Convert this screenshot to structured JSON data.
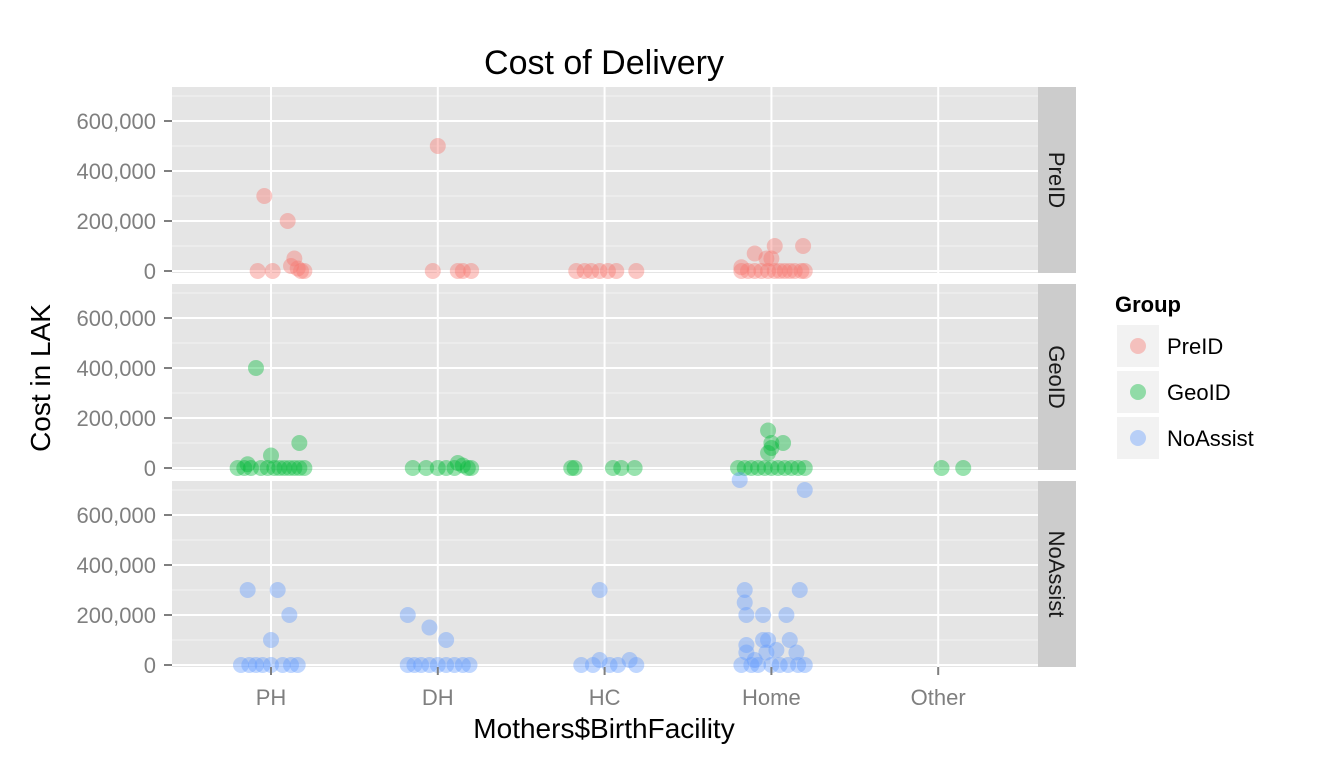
{
  "chart_data": {
    "type": "scatter",
    "title": "Cost of Delivery",
    "xlabel": "Mothers$BirthFacility",
    "ylabel": "Cost in LAK",
    "categories": [
      "PH",
      "DH",
      "HC",
      "Home",
      "Other"
    ],
    "ylim": [
      0,
      720000
    ],
    "yticks": [
      0,
      200000,
      400000,
      600000
    ],
    "ytick_labels": [
      "0",
      "200,000",
      "400,000",
      "600,000"
    ],
    "grid": true,
    "legend": {
      "title": "Group",
      "position": "right"
    },
    "facets": [
      "PreID",
      "GeoID",
      "NoAssist"
    ],
    "colors": {
      "PreID": "#F8766D",
      "GeoID": "#00BA38",
      "NoAssist": "#619CFF"
    },
    "series": [
      {
        "name": "PreID",
        "points": [
          [
            "PH",
            -0.08,
            0
          ],
          [
            "PH",
            -0.04,
            300000
          ],
          [
            "PH",
            0.01,
            0
          ],
          [
            "PH",
            0.1,
            200000
          ],
          [
            "PH",
            0.12,
            20000
          ],
          [
            "PH",
            0.14,
            50000
          ],
          [
            "PH",
            0.16,
            10000
          ],
          [
            "PH",
            0.18,
            0
          ],
          [
            "PH",
            0.2,
            0
          ],
          [
            "DH",
            -0.03,
            0
          ],
          [
            "DH",
            0.0,
            500000
          ],
          [
            "DH",
            0.12,
            0
          ],
          [
            "DH",
            0.15,
            0
          ],
          [
            "DH",
            0.2,
            0
          ],
          [
            "HC",
            -0.17,
            0
          ],
          [
            "HC",
            -0.12,
            0
          ],
          [
            "HC",
            -0.08,
            0
          ],
          [
            "HC",
            -0.03,
            0
          ],
          [
            "HC",
            0.02,
            0
          ],
          [
            "HC",
            0.07,
            0
          ],
          [
            "HC",
            0.19,
            0
          ],
          [
            "Home",
            -0.18,
            0
          ],
          [
            "Home",
            -0.18,
            15000
          ],
          [
            "Home",
            -0.14,
            0
          ],
          [
            "Home",
            -0.1,
            0
          ],
          [
            "Home",
            -0.1,
            70000
          ],
          [
            "Home",
            -0.06,
            0
          ],
          [
            "Home",
            -0.03,
            50000
          ],
          [
            "Home",
            -0.02,
            0
          ],
          [
            "Home",
            0.0,
            50000
          ],
          [
            "Home",
            0.02,
            0
          ],
          [
            "Home",
            0.02,
            100000
          ],
          [
            "Home",
            0.05,
            0
          ],
          [
            "Home",
            0.08,
            0
          ],
          [
            "Home",
            0.11,
            0
          ],
          [
            "Home",
            0.14,
            0
          ],
          [
            "Home",
            0.18,
            0
          ],
          [
            "Home",
            0.19,
            100000
          ],
          [
            "Home",
            0.2,
            0
          ]
        ]
      },
      {
        "name": "GeoID",
        "points": [
          [
            "PH",
            -0.2,
            0
          ],
          [
            "PH",
            -0.16,
            0
          ],
          [
            "PH",
            -0.14,
            15000
          ],
          [
            "PH",
            -0.12,
            0
          ],
          [
            "PH",
            -0.09,
            400000
          ],
          [
            "PH",
            -0.06,
            0
          ],
          [
            "PH",
            -0.02,
            0
          ],
          [
            "PH",
            0.0,
            50000
          ],
          [
            "PH",
            0.02,
            0
          ],
          [
            "PH",
            0.05,
            0
          ],
          [
            "PH",
            0.08,
            0
          ],
          [
            "PH",
            0.11,
            0
          ],
          [
            "PH",
            0.14,
            0
          ],
          [
            "PH",
            0.17,
            0
          ],
          [
            "PH",
            0.17,
            100000
          ],
          [
            "PH",
            0.2,
            0
          ],
          [
            "DH",
            -0.15,
            0
          ],
          [
            "DH",
            -0.07,
            0
          ],
          [
            "DH",
            0.0,
            0
          ],
          [
            "DH",
            0.05,
            0
          ],
          [
            "DH",
            0.1,
            0
          ],
          [
            "DH",
            0.12,
            20000
          ],
          [
            "DH",
            0.15,
            10000
          ],
          [
            "DH",
            0.18,
            0
          ],
          [
            "DH",
            0.2,
            0
          ],
          [
            "HC",
            -0.2,
            0
          ],
          [
            "HC",
            -0.18,
            0
          ],
          [
            "HC",
            0.05,
            0
          ],
          [
            "HC",
            0.1,
            0
          ],
          [
            "HC",
            0.18,
            0
          ],
          [
            "Home",
            -0.2,
            0
          ],
          [
            "Home",
            -0.16,
            0
          ],
          [
            "Home",
            -0.12,
            0
          ],
          [
            "Home",
            -0.08,
            0
          ],
          [
            "Home",
            -0.04,
            0
          ],
          [
            "Home",
            -0.02,
            150000
          ],
          [
            "Home",
            -0.02,
            60000
          ],
          [
            "Home",
            0.0,
            0
          ],
          [
            "Home",
            0.0,
            80000
          ],
          [
            "Home",
            0.0,
            100000
          ],
          [
            "Home",
            0.04,
            0
          ],
          [
            "Home",
            0.07,
            100000
          ],
          [
            "Home",
            0.08,
            0
          ],
          [
            "Home",
            0.12,
            0
          ],
          [
            "Home",
            0.16,
            0
          ],
          [
            "Home",
            0.2,
            0
          ],
          [
            "Other",
            0.02,
            0
          ],
          [
            "Other",
            0.15,
            0
          ]
        ]
      },
      {
        "name": "NoAssist",
        "points": [
          [
            "PH",
            -0.18,
            0
          ],
          [
            "PH",
            -0.14,
            300000
          ],
          [
            "PH",
            -0.13,
            0
          ],
          [
            "PH",
            -0.09,
            0
          ],
          [
            "PH",
            -0.05,
            0
          ],
          [
            "PH",
            0.0,
            100000
          ],
          [
            "PH",
            0.0,
            0
          ],
          [
            "PH",
            0.04,
            300000
          ],
          [
            "PH",
            0.07,
            0
          ],
          [
            "PH",
            0.11,
            200000
          ],
          [
            "PH",
            0.12,
            0
          ],
          [
            "PH",
            0.16,
            0
          ],
          [
            "DH",
            -0.18,
            0
          ],
          [
            "DH",
            -0.18,
            200000
          ],
          [
            "DH",
            -0.14,
            0
          ],
          [
            "DH",
            -0.1,
            0
          ],
          [
            "DH",
            -0.05,
            150000
          ],
          [
            "DH",
            -0.05,
            0
          ],
          [
            "DH",
            0.0,
            0
          ],
          [
            "DH",
            0.05,
            100000
          ],
          [
            "DH",
            0.05,
            0
          ],
          [
            "DH",
            0.1,
            0
          ],
          [
            "DH",
            0.15,
            0
          ],
          [
            "DH",
            0.19,
            0
          ],
          [
            "HC",
            -0.14,
            0
          ],
          [
            "HC",
            -0.07,
            0
          ],
          [
            "HC",
            -0.03,
            20000
          ],
          [
            "HC",
            -0.03,
            300000
          ],
          [
            "HC",
            0.03,
            0
          ],
          [
            "HC",
            0.08,
            0
          ],
          [
            "HC",
            0.15,
            20000
          ],
          [
            "HC",
            0.19,
            0
          ],
          [
            "Home",
            -0.19,
            740000
          ],
          [
            "Home",
            -0.18,
            0
          ],
          [
            "Home",
            -0.16,
            300000
          ],
          [
            "Home",
            -0.16,
            250000
          ],
          [
            "Home",
            -0.15,
            200000
          ],
          [
            "Home",
            -0.15,
            80000
          ],
          [
            "Home",
            -0.15,
            50000
          ],
          [
            "Home",
            -0.12,
            0
          ],
          [
            "Home",
            -0.1,
            20000
          ],
          [
            "Home",
            -0.08,
            0
          ],
          [
            "Home",
            -0.05,
            100000
          ],
          [
            "Home",
            -0.05,
            200000
          ],
          [
            "Home",
            -0.03,
            50000
          ],
          [
            "Home",
            -0.02,
            100000
          ],
          [
            "Home",
            0.0,
            0
          ],
          [
            "Home",
            0.03,
            60000
          ],
          [
            "Home",
            0.05,
            0
          ],
          [
            "Home",
            0.09,
            200000
          ],
          [
            "Home",
            0.1,
            0
          ],
          [
            "Home",
            0.11,
            100000
          ],
          [
            "Home",
            0.15,
            50000
          ],
          [
            "Home",
            0.16,
            0
          ],
          [
            "Home",
            0.17,
            300000
          ],
          [
            "Home",
            0.2,
            700000
          ],
          [
            "Home",
            0.2,
            0
          ]
        ]
      }
    ]
  }
}
